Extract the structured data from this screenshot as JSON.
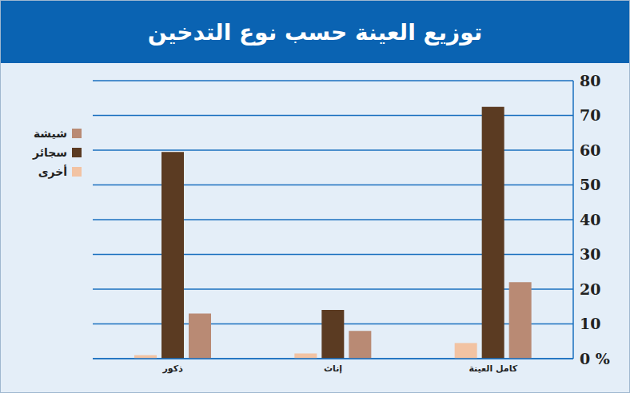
{
  "chart_data": {
    "type": "bar",
    "title": "توزيع العينة حسب نوع التدخين",
    "categories": [
      "ذكور",
      "إناث",
      "كامل العينة"
    ],
    "series": [
      {
        "name": "أخرى",
        "color": "#f2c3a3",
        "values": [
          1,
          1.5,
          4.5
        ]
      },
      {
        "name": "سجائر",
        "color": "#5b3b22",
        "values": [
          59.5,
          14,
          72.5
        ]
      },
      {
        "name": "شيشة",
        "color": "#b98a74",
        "values": [
          13,
          8,
          22
        ]
      }
    ],
    "ylim": [
      0,
      80
    ],
    "yticks": [
      {
        "value": 0,
        "label": "0 %"
      },
      10,
      20,
      30,
      40,
      50,
      60,
      70,
      80
    ],
    "grid": true,
    "legend": "top-left"
  }
}
